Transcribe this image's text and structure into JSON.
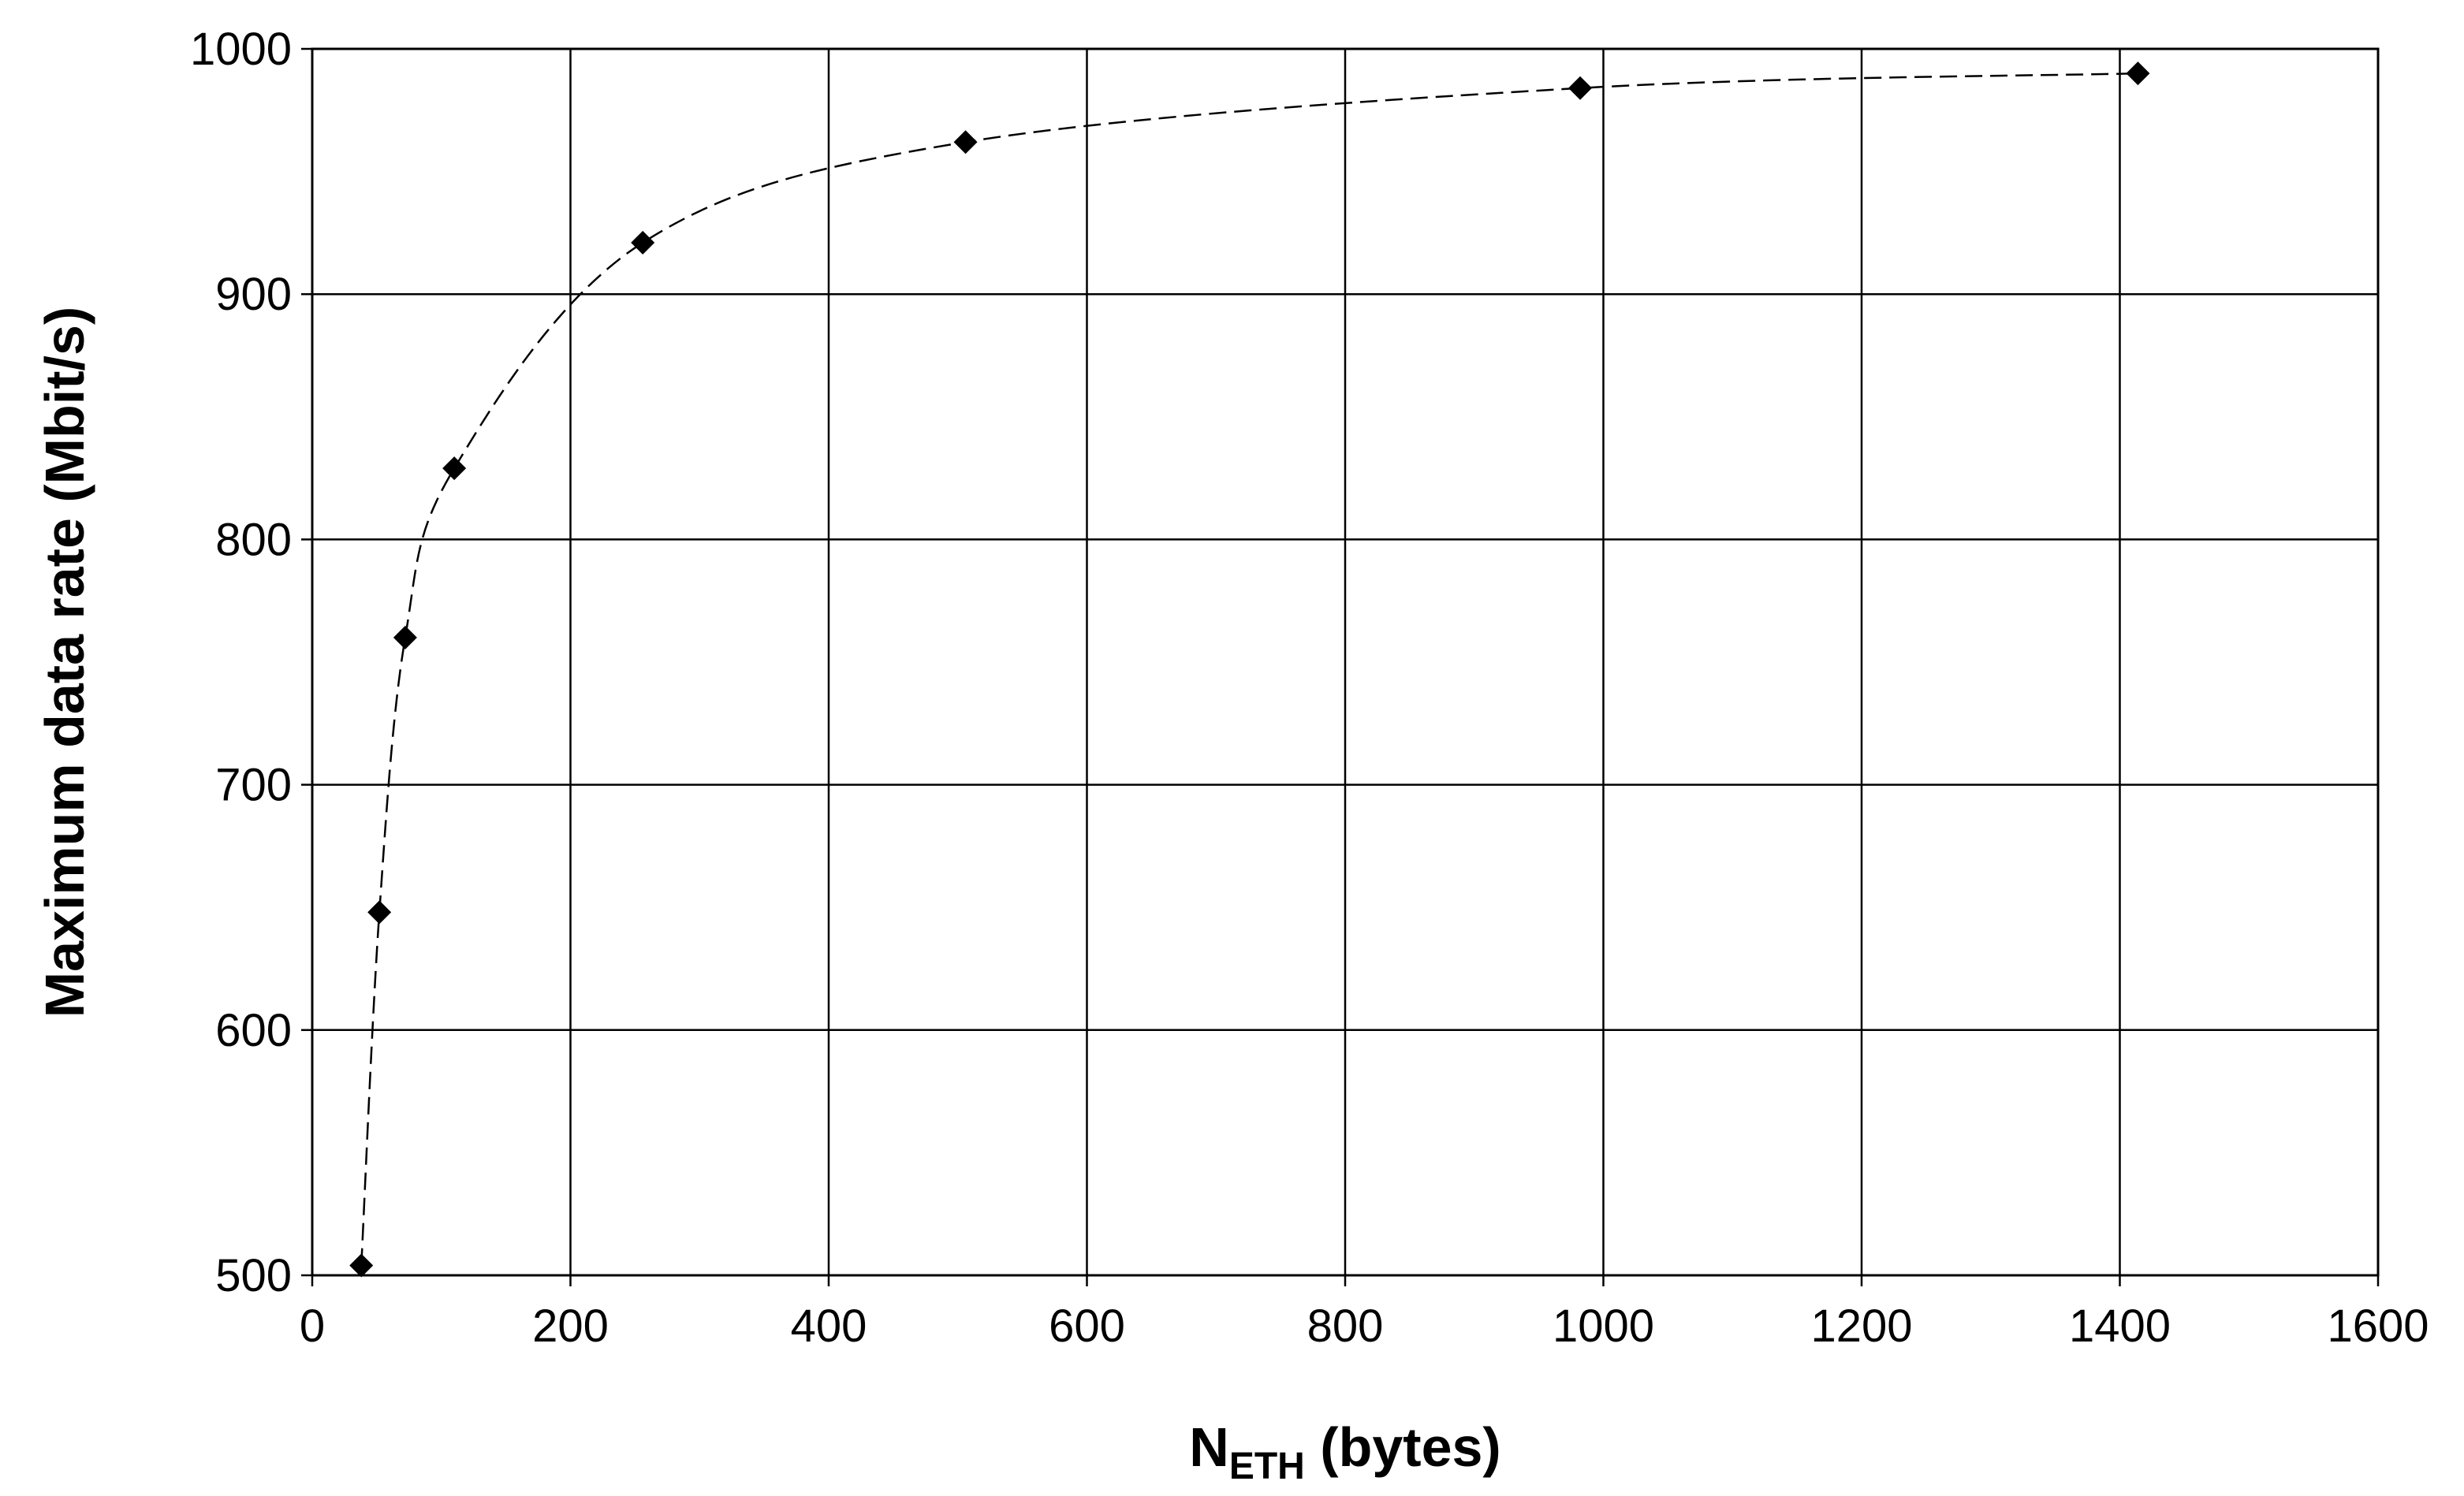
{
  "chart_data": {
    "type": "scatter",
    "title": "",
    "xlabel": {
      "main": "N",
      "subscript": "ETH",
      "suffix": " (bytes)"
    },
    "ylabel": "Maximum data rate (Mbit/s)",
    "xlim": [
      0,
      1600
    ],
    "ylim": [
      500,
      1000
    ],
    "x_ticks": [
      0,
      200,
      400,
      600,
      800,
      1000,
      1200,
      1400,
      1600
    ],
    "y_ticks": [
      500,
      600,
      700,
      800,
      900,
      1000
    ],
    "x_tick_labels": [
      "0",
      "200",
      "400",
      "600",
      "800",
      "1000",
      "1200",
      "1400",
      "1600"
    ],
    "y_tick_labels": [
      "500",
      "600",
      "700",
      "800",
      "900",
      "1000"
    ],
    "grid": true,
    "legend": "none",
    "series": [
      {
        "marker": "diamond",
        "line_style": "dashed",
        "line": "smoothed",
        "color": "#000000",
        "x": [
          38,
          52,
          72,
          110,
          256,
          506,
          982,
          1414
        ],
        "y": [
          504,
          648,
          760,
          829,
          921,
          962,
          984,
          990
        ]
      }
    ]
  }
}
